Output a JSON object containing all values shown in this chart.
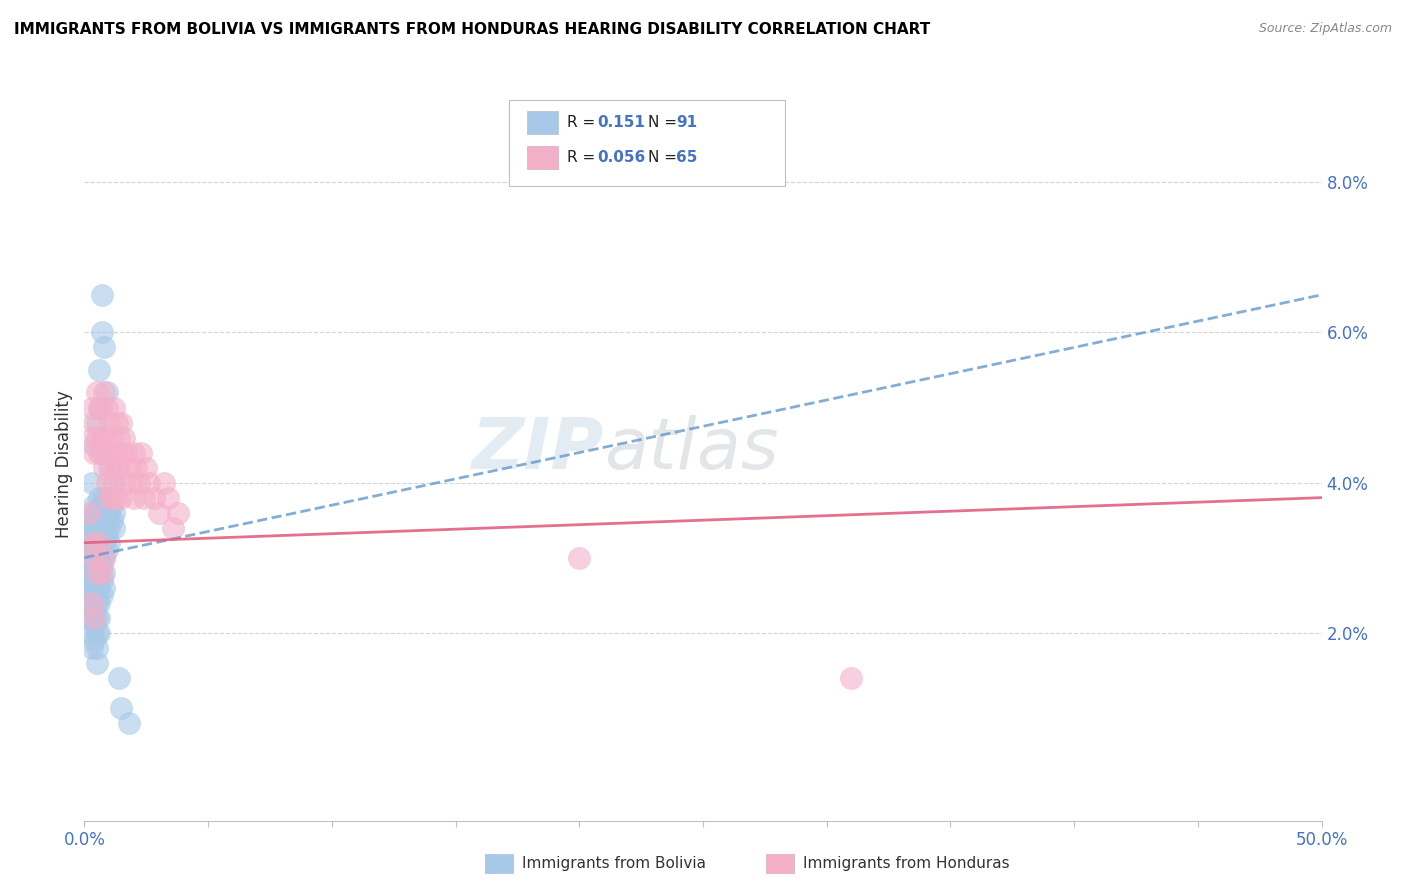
{
  "title": "IMMIGRANTS FROM BOLIVIA VS IMMIGRANTS FROM HONDURAS HEARING DISABILITY CORRELATION CHART",
  "source": "Source: ZipAtlas.com",
  "ylabel": "Hearing Disability",
  "y_ticks": [
    "2.0%",
    "4.0%",
    "6.0%",
    "8.0%"
  ],
  "y_tick_vals": [
    0.02,
    0.04,
    0.06,
    0.08
  ],
  "xlim": [
    0.0,
    0.5
  ],
  "ylim": [
    -0.005,
    0.09
  ],
  "color_bolivia": "#a8c8e8",
  "color_honduras": "#f4b0c8",
  "trendline_bolivia_color": "#6699cc",
  "trendline_honduras_color": "#e06080",
  "bolivia_scatter": [
    [
      0.001,
      0.034
    ],
    [
      0.001,
      0.032
    ],
    [
      0.001,
      0.03
    ],
    [
      0.001,
      0.028
    ],
    [
      0.002,
      0.035
    ],
    [
      0.002,
      0.033
    ],
    [
      0.002,
      0.031
    ],
    [
      0.002,
      0.029
    ],
    [
      0.002,
      0.027
    ],
    [
      0.002,
      0.026
    ],
    [
      0.002,
      0.024
    ],
    [
      0.002,
      0.022
    ],
    [
      0.003,
      0.036
    ],
    [
      0.003,
      0.034
    ],
    [
      0.003,
      0.032
    ],
    [
      0.003,
      0.03
    ],
    [
      0.003,
      0.028
    ],
    [
      0.003,
      0.026
    ],
    [
      0.003,
      0.024
    ],
    [
      0.003,
      0.022
    ],
    [
      0.003,
      0.02
    ],
    [
      0.003,
      0.018
    ],
    [
      0.004,
      0.037
    ],
    [
      0.004,
      0.035
    ],
    [
      0.004,
      0.033
    ],
    [
      0.004,
      0.031
    ],
    [
      0.004,
      0.029
    ],
    [
      0.004,
      0.027
    ],
    [
      0.004,
      0.025
    ],
    [
      0.004,
      0.023
    ],
    [
      0.004,
      0.021
    ],
    [
      0.004,
      0.019
    ],
    [
      0.005,
      0.036
    ],
    [
      0.005,
      0.034
    ],
    [
      0.005,
      0.032
    ],
    [
      0.005,
      0.03
    ],
    [
      0.005,
      0.028
    ],
    [
      0.005,
      0.026
    ],
    [
      0.005,
      0.024
    ],
    [
      0.005,
      0.022
    ],
    [
      0.005,
      0.02
    ],
    [
      0.005,
      0.018
    ],
    [
      0.005,
      0.016
    ],
    [
      0.006,
      0.038
    ],
    [
      0.006,
      0.036
    ],
    [
      0.006,
      0.034
    ],
    [
      0.006,
      0.032
    ],
    [
      0.006,
      0.03
    ],
    [
      0.006,
      0.028
    ],
    [
      0.006,
      0.026
    ],
    [
      0.006,
      0.024
    ],
    [
      0.006,
      0.022
    ],
    [
      0.006,
      0.02
    ],
    [
      0.007,
      0.037
    ],
    [
      0.007,
      0.035
    ],
    [
      0.007,
      0.033
    ],
    [
      0.007,
      0.031
    ],
    [
      0.007,
      0.029
    ],
    [
      0.007,
      0.027
    ],
    [
      0.007,
      0.025
    ],
    [
      0.008,
      0.038
    ],
    [
      0.008,
      0.036
    ],
    [
      0.008,
      0.034
    ],
    [
      0.008,
      0.032
    ],
    [
      0.008,
      0.03
    ],
    [
      0.008,
      0.028
    ],
    [
      0.008,
      0.026
    ],
    [
      0.009,
      0.037
    ],
    [
      0.009,
      0.035
    ],
    [
      0.009,
      0.033
    ],
    [
      0.009,
      0.031
    ],
    [
      0.01,
      0.038
    ],
    [
      0.01,
      0.036
    ],
    [
      0.01,
      0.034
    ],
    [
      0.01,
      0.032
    ],
    [
      0.011,
      0.037
    ],
    [
      0.011,
      0.035
    ],
    [
      0.012,
      0.036
    ],
    [
      0.012,
      0.034
    ],
    [
      0.006,
      0.05
    ],
    [
      0.006,
      0.055
    ],
    [
      0.007,
      0.06
    ],
    [
      0.007,
      0.065
    ],
    [
      0.008,
      0.058
    ],
    [
      0.009,
      0.052
    ],
    [
      0.004,
      0.045
    ],
    [
      0.005,
      0.048
    ],
    [
      0.003,
      0.04
    ],
    [
      0.01,
      0.042
    ],
    [
      0.012,
      0.04
    ],
    [
      0.014,
      0.014
    ],
    [
      0.015,
      0.01
    ],
    [
      0.018,
      0.008
    ]
  ],
  "honduras_scatter": [
    [
      0.002,
      0.036
    ],
    [
      0.003,
      0.05
    ],
    [
      0.003,
      0.046
    ],
    [
      0.004,
      0.048
    ],
    [
      0.004,
      0.044
    ],
    [
      0.005,
      0.052
    ],
    [
      0.005,
      0.046
    ],
    [
      0.006,
      0.05
    ],
    [
      0.006,
      0.044
    ],
    [
      0.007,
      0.05
    ],
    [
      0.007,
      0.046
    ],
    [
      0.007,
      0.044
    ],
    [
      0.008,
      0.052
    ],
    [
      0.008,
      0.046
    ],
    [
      0.008,
      0.042
    ],
    [
      0.009,
      0.05
    ],
    [
      0.009,
      0.044
    ],
    [
      0.009,
      0.04
    ],
    [
      0.01,
      0.048
    ],
    [
      0.01,
      0.044
    ],
    [
      0.01,
      0.038
    ],
    [
      0.011,
      0.046
    ],
    [
      0.011,
      0.042
    ],
    [
      0.011,
      0.038
    ],
    [
      0.012,
      0.05
    ],
    [
      0.012,
      0.044
    ],
    [
      0.012,
      0.04
    ],
    [
      0.013,
      0.048
    ],
    [
      0.013,
      0.042
    ],
    [
      0.013,
      0.038
    ],
    [
      0.014,
      0.046
    ],
    [
      0.014,
      0.042
    ],
    [
      0.015,
      0.048
    ],
    [
      0.015,
      0.044
    ],
    [
      0.015,
      0.038
    ],
    [
      0.016,
      0.046
    ],
    [
      0.016,
      0.04
    ],
    [
      0.017,
      0.044
    ],
    [
      0.018,
      0.042
    ],
    [
      0.019,
      0.04
    ],
    [
      0.02,
      0.044
    ],
    [
      0.02,
      0.038
    ],
    [
      0.021,
      0.042
    ],
    [
      0.022,
      0.04
    ],
    [
      0.023,
      0.044
    ],
    [
      0.024,
      0.038
    ],
    [
      0.025,
      0.042
    ],
    [
      0.026,
      0.04
    ],
    [
      0.028,
      0.038
    ],
    [
      0.03,
      0.036
    ],
    [
      0.032,
      0.04
    ],
    [
      0.034,
      0.038
    ],
    [
      0.036,
      0.034
    ],
    [
      0.038,
      0.036
    ],
    [
      0.003,
      0.032
    ],
    [
      0.004,
      0.03
    ],
    [
      0.005,
      0.028
    ],
    [
      0.006,
      0.032
    ],
    [
      0.007,
      0.028
    ],
    [
      0.008,
      0.03
    ],
    [
      0.003,
      0.024
    ],
    [
      0.004,
      0.022
    ],
    [
      0.31,
      0.014
    ],
    [
      0.2,
      0.03
    ]
  ],
  "bolivia_trend_x": [
    0.0,
    0.5
  ],
  "bolivia_trend_y": [
    0.03,
    0.065
  ],
  "honduras_trend_x": [
    0.0,
    0.5
  ],
  "honduras_trend_y": [
    0.032,
    0.038
  ]
}
